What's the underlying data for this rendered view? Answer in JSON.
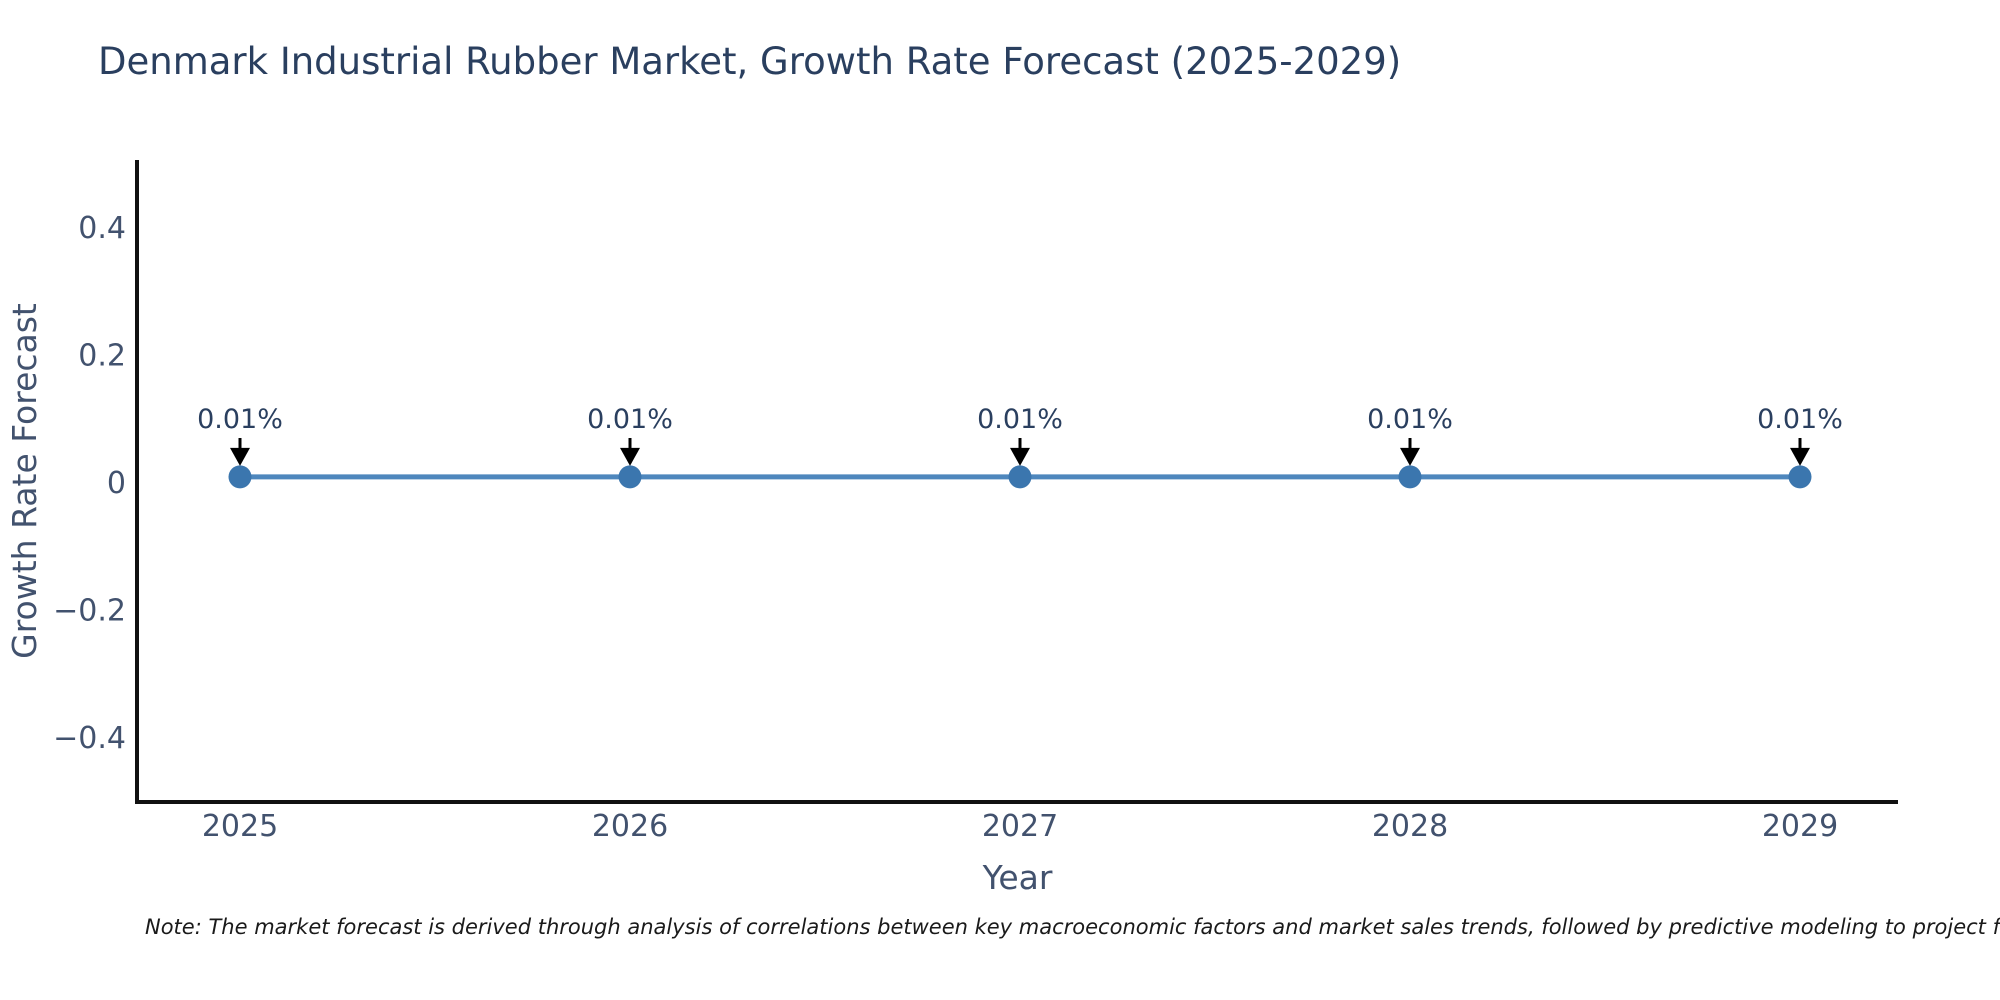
{
  "header": {
    "title": "Denmark Industrial Rubber Market, Growth Rate Forecast (2025-2029)"
  },
  "chart_data": {
    "type": "line",
    "title": "Denmark Industrial Rubber Market, Growth Rate Forecast (2025-2029)",
    "x": [
      2025,
      2026,
      2027,
      2028,
      2029
    ],
    "series": [
      {
        "name": "Growth Rate Forecast",
        "values": [
          0.01,
          0.01,
          0.01,
          0.01,
          0.01
        ]
      }
    ],
    "point_labels": [
      "0.01%",
      "0.01%",
      "0.01%",
      "0.01%",
      "0.01%"
    ],
    "xlabel": "Year",
    "ylabel": "Growth Rate Forecast",
    "xticks": [
      "2025",
      "2026",
      "2027",
      "2028",
      "2029"
    ],
    "yticks": [
      {
        "value": 0.4,
        "label": "0.4"
      },
      {
        "value": 0.2,
        "label": "0.2"
      },
      {
        "value": 0,
        "label": "0"
      },
      {
        "value": -0.2,
        "label": "−0.2"
      },
      {
        "value": -0.4,
        "label": "−0.4"
      }
    ],
    "ylim": [
      -0.5,
      0.507
    ],
    "grid": false,
    "legend": "none",
    "colors": {
      "line": "#4e87bd",
      "marker": "#3b76ae",
      "axis": "#111111",
      "tick_text": "#42526e",
      "annotation_text": "#2a3f5f",
      "arrow": "#000000",
      "title_text": "#2a3f5f"
    }
  },
  "footer": {
    "note": "Note: The market forecast is derived through analysis of correlations between key macroeconomic factors and market sales trends, followed by predictive modeling to project future sales."
  }
}
